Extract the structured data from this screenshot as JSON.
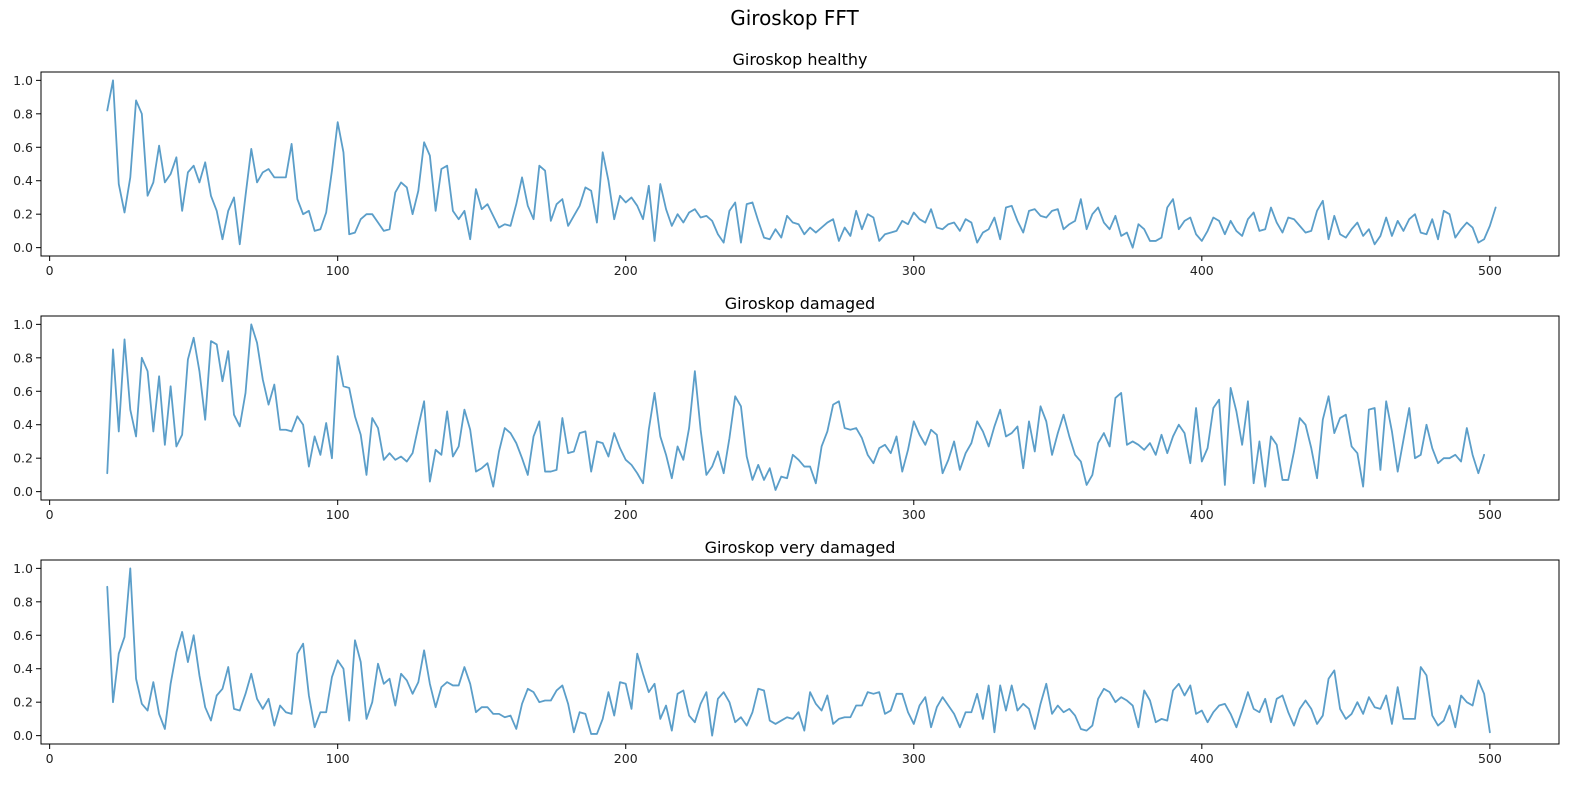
{
  "figure": {
    "title": "Giroskop FFT",
    "line_color": "#5b9ec9"
  },
  "chart_data": [
    {
      "type": "line",
      "title": "Giroskop healthy",
      "xlabel": "",
      "ylabel": "",
      "xlim": [
        -3,
        524
      ],
      "ylim": [
        -0.05,
        1.05
      ],
      "xticks": [
        0,
        100,
        200,
        300,
        400,
        500
      ],
      "yticks": [
        0.0,
        0.2,
        0.4,
        0.6,
        0.8,
        1.0
      ],
      "grid": false,
      "series": [
        {
          "x_start": 20,
          "x_step": 2,
          "values": [
            0.82,
            1.0,
            0.38,
            0.21,
            0.42,
            0.88,
            0.8,
            0.31,
            0.39,
            0.61,
            0.39,
            0.44,
            0.54,
            0.22,
            0.45,
            0.49,
            0.39,
            0.51,
            0.31,
            0.22,
            0.05,
            0.22,
            0.3,
            0.02,
            0.31,
            0.59,
            0.39,
            0.45,
            0.47,
            0.42,
            0.42,
            0.42,
            0.62,
            0.29,
            0.2,
            0.22,
            0.1,
            0.11,
            0.21,
            0.46,
            0.75,
            0.57,
            0.08,
            0.09,
            0.17,
            0.2,
            0.2,
            0.15,
            0.1,
            0.11,
            0.33,
            0.39,
            0.36,
            0.2,
            0.34,
            0.63,
            0.55,
            0.22,
            0.47,
            0.49,
            0.22,
            0.17,
            0.22,
            0.05,
            0.35,
            0.23,
            0.26,
            0.19,
            0.12,
            0.14,
            0.13,
            0.26,
            0.42,
            0.25,
            0.17,
            0.49,
            0.46,
            0.16,
            0.26,
            0.29,
            0.13,
            0.19,
            0.25,
            0.36,
            0.34,
            0.15,
            0.57,
            0.4,
            0.17,
            0.31,
            0.27,
            0.3,
            0.25,
            0.17,
            0.37,
            0.04,
            0.38,
            0.23,
            0.13,
            0.2,
            0.15,
            0.21,
            0.23,
            0.18,
            0.19,
            0.16,
            0.08,
            0.03,
            0.22,
            0.27,
            0.03,
            0.26,
            0.27,
            0.16,
            0.06,
            0.05,
            0.11,
            0.06,
            0.19,
            0.15,
            0.14,
            0.08,
            0.12,
            0.09,
            0.12,
            0.15,
            0.17,
            0.04,
            0.12,
            0.07,
            0.22,
            0.11,
            0.2,
            0.18,
            0.04,
            0.08,
            0.09,
            0.1,
            0.16,
            0.14,
            0.21,
            0.17,
            0.15,
            0.23,
            0.12,
            0.11,
            0.14,
            0.15,
            0.1,
            0.17,
            0.15,
            0.03,
            0.09,
            0.11,
            0.18,
            0.05,
            0.24,
            0.25,
            0.16,
            0.09,
            0.22,
            0.23,
            0.19,
            0.18,
            0.22,
            0.23,
            0.11,
            0.14,
            0.16,
            0.29,
            0.11,
            0.2,
            0.24,
            0.15,
            0.11,
            0.19,
            0.07,
            0.09,
            0.0,
            0.14,
            0.11,
            0.04,
            0.04,
            0.06,
            0.24,
            0.29,
            0.11,
            0.16,
            0.18,
            0.08,
            0.04,
            0.1,
            0.18,
            0.16,
            0.08,
            0.16,
            0.1,
            0.07,
            0.17,
            0.21,
            0.1,
            0.11,
            0.24,
            0.15,
            0.09,
            0.18,
            0.17,
            0.13,
            0.09,
            0.1,
            0.22,
            0.28,
            0.05,
            0.19,
            0.08,
            0.06,
            0.11,
            0.15,
            0.07,
            0.11,
            0.02,
            0.07,
            0.18,
            0.07,
            0.16,
            0.1,
            0.17,
            0.2,
            0.09,
            0.08,
            0.17,
            0.05,
            0.22,
            0.2,
            0.06,
            0.11,
            0.15,
            0.12,
            0.03,
            0.05,
            0.13,
            0.24
          ]
        }
      ]
    },
    {
      "type": "line",
      "title": "Giroskop damaged",
      "xlabel": "",
      "ylabel": "",
      "xlim": [
        -3,
        524
      ],
      "ylim": [
        -0.05,
        1.05
      ],
      "xticks": [
        0,
        100,
        200,
        300,
        400,
        500
      ],
      "yticks": [
        0.0,
        0.2,
        0.4,
        0.6,
        0.8,
        1.0
      ],
      "grid": false,
      "series": [
        {
          "x_start": 20,
          "x_step": 2,
          "values": [
            0.11,
            0.85,
            0.36,
            0.91,
            0.49,
            0.33,
            0.8,
            0.72,
            0.36,
            0.69,
            0.28,
            0.63,
            0.27,
            0.34,
            0.79,
            0.92,
            0.72,
            0.43,
            0.9,
            0.88,
            0.66,
            0.84,
            0.46,
            0.39,
            0.59,
            1.0,
            0.89,
            0.67,
            0.52,
            0.64,
            0.37,
            0.37,
            0.36,
            0.45,
            0.4,
            0.15,
            0.33,
            0.22,
            0.41,
            0.2,
            0.81,
            0.63,
            0.62,
            0.45,
            0.34,
            0.1,
            0.44,
            0.38,
            0.19,
            0.23,
            0.19,
            0.21,
            0.18,
            0.23,
            0.39,
            0.54,
            0.06,
            0.25,
            0.22,
            0.48,
            0.21,
            0.27,
            0.49,
            0.37,
            0.12,
            0.14,
            0.17,
            0.03,
            0.24,
            0.38,
            0.35,
            0.29,
            0.2,
            0.1,
            0.33,
            0.42,
            0.12,
            0.12,
            0.13,
            0.44,
            0.23,
            0.24,
            0.35,
            0.36,
            0.12,
            0.3,
            0.29,
            0.21,
            0.35,
            0.26,
            0.19,
            0.16,
            0.11,
            0.05,
            0.37,
            0.59,
            0.33,
            0.22,
            0.08,
            0.27,
            0.19,
            0.38,
            0.72,
            0.37,
            0.1,
            0.15,
            0.24,
            0.11,
            0.32,
            0.57,
            0.51,
            0.21,
            0.07,
            0.16,
            0.07,
            0.14,
            0.01,
            0.09,
            0.08,
            0.22,
            0.19,
            0.15,
            0.15,
            0.05,
            0.27,
            0.36,
            0.52,
            0.54,
            0.38,
            0.37,
            0.38,
            0.32,
            0.22,
            0.17,
            0.26,
            0.28,
            0.23,
            0.33,
            0.12,
            0.25,
            0.42,
            0.34,
            0.28,
            0.37,
            0.34,
            0.11,
            0.19,
            0.3,
            0.13,
            0.23,
            0.29,
            0.42,
            0.36,
            0.27,
            0.39,
            0.49,
            0.33,
            0.35,
            0.39,
            0.14,
            0.42,
            0.24,
            0.51,
            0.42,
            0.22,
            0.35,
            0.46,
            0.33,
            0.22,
            0.18,
            0.04,
            0.1,
            0.29,
            0.35,
            0.27,
            0.56,
            0.59,
            0.28,
            0.3,
            0.28,
            0.25,
            0.29,
            0.22,
            0.34,
            0.23,
            0.33,
            0.4,
            0.35,
            0.17,
            0.5,
            0.18,
            0.26,
            0.5,
            0.55,
            0.04,
            0.62,
            0.48,
            0.28,
            0.54,
            0.05,
            0.3,
            0.03,
            0.33,
            0.28,
            0.07,
            0.07,
            0.24,
            0.44,
            0.4,
            0.26,
            0.08,
            0.43,
            0.57,
            0.35,
            0.44,
            0.46,
            0.27,
            0.23,
            0.03,
            0.49,
            0.5,
            0.13,
            0.54,
            0.36,
            0.12,
            0.31,
            0.5,
            0.2,
            0.22,
            0.4,
            0.26,
            0.17,
            0.2,
            0.2,
            0.22,
            0.18,
            0.38,
            0.22,
            0.11,
            0.22
          ]
        }
      ]
    },
    {
      "type": "line",
      "title": "Giroskop very damaged",
      "xlabel": "",
      "ylabel": "",
      "xlim": [
        -3,
        524
      ],
      "ylim": [
        -0.05,
        1.05
      ],
      "xticks": [
        0,
        100,
        200,
        300,
        400,
        500
      ],
      "yticks": [
        0.0,
        0.2,
        0.4,
        0.6,
        0.8,
        1.0
      ],
      "grid": false,
      "series": [
        {
          "x_start": 20,
          "x_step": 2,
          "values": [
            0.89,
            0.2,
            0.49,
            0.59,
            1.0,
            0.34,
            0.19,
            0.15,
            0.32,
            0.13,
            0.04,
            0.31,
            0.5,
            0.62,
            0.44,
            0.6,
            0.36,
            0.17,
            0.09,
            0.24,
            0.28,
            0.41,
            0.16,
            0.15,
            0.25,
            0.37,
            0.22,
            0.16,
            0.22,
            0.06,
            0.18,
            0.14,
            0.13,
            0.49,
            0.55,
            0.24,
            0.05,
            0.14,
            0.14,
            0.35,
            0.45,
            0.4,
            0.09,
            0.57,
            0.44,
            0.1,
            0.2,
            0.43,
            0.31,
            0.34,
            0.18,
            0.37,
            0.33,
            0.25,
            0.32,
            0.51,
            0.31,
            0.17,
            0.29,
            0.32,
            0.3,
            0.3,
            0.41,
            0.31,
            0.14,
            0.17,
            0.17,
            0.13,
            0.13,
            0.11,
            0.12,
            0.04,
            0.19,
            0.28,
            0.26,
            0.2,
            0.21,
            0.21,
            0.27,
            0.3,
            0.19,
            0.02,
            0.14,
            0.13,
            0.01,
            0.01,
            0.1,
            0.26,
            0.12,
            0.32,
            0.31,
            0.16,
            0.49,
            0.37,
            0.26,
            0.31,
            0.1,
            0.18,
            0.03,
            0.25,
            0.27,
            0.12,
            0.08,
            0.19,
            0.26,
            0.0,
            0.22,
            0.26,
            0.2,
            0.08,
            0.11,
            0.06,
            0.14,
            0.28,
            0.27,
            0.09,
            0.07,
            0.09,
            0.11,
            0.1,
            0.14,
            0.03,
            0.26,
            0.19,
            0.15,
            0.24,
            0.07,
            0.1,
            0.11,
            0.11,
            0.18,
            0.18,
            0.26,
            0.25,
            0.26,
            0.13,
            0.15,
            0.25,
            0.25,
            0.14,
            0.07,
            0.18,
            0.23,
            0.05,
            0.17,
            0.23,
            0.18,
            0.13,
            0.05,
            0.14,
            0.14,
            0.25,
            0.1,
            0.3,
            0.02,
            0.3,
            0.15,
            0.3,
            0.15,
            0.19,
            0.16,
            0.04,
            0.19,
            0.31,
            0.13,
            0.18,
            0.14,
            0.16,
            0.12,
            0.04,
            0.03,
            0.06,
            0.22,
            0.28,
            0.26,
            0.2,
            0.23,
            0.21,
            0.18,
            0.05,
            0.27,
            0.21,
            0.08,
            0.1,
            0.09,
            0.27,
            0.31,
            0.24,
            0.3,
            0.13,
            0.15,
            0.08,
            0.14,
            0.18,
            0.19,
            0.13,
            0.05,
            0.15,
            0.26,
            0.16,
            0.14,
            0.22,
            0.08,
            0.22,
            0.24,
            0.14,
            0.06,
            0.16,
            0.21,
            0.16,
            0.07,
            0.12,
            0.34,
            0.39,
            0.16,
            0.1,
            0.13,
            0.2,
            0.13,
            0.23,
            0.17,
            0.16,
            0.24,
            0.07,
            0.29,
            0.1,
            0.1,
            0.1,
            0.41,
            0.36,
            0.12,
            0.06,
            0.09,
            0.18,
            0.05,
            0.24,
            0.2,
            0.18,
            0.33,
            0.25,
            0.02
          ]
        }
      ]
    }
  ]
}
